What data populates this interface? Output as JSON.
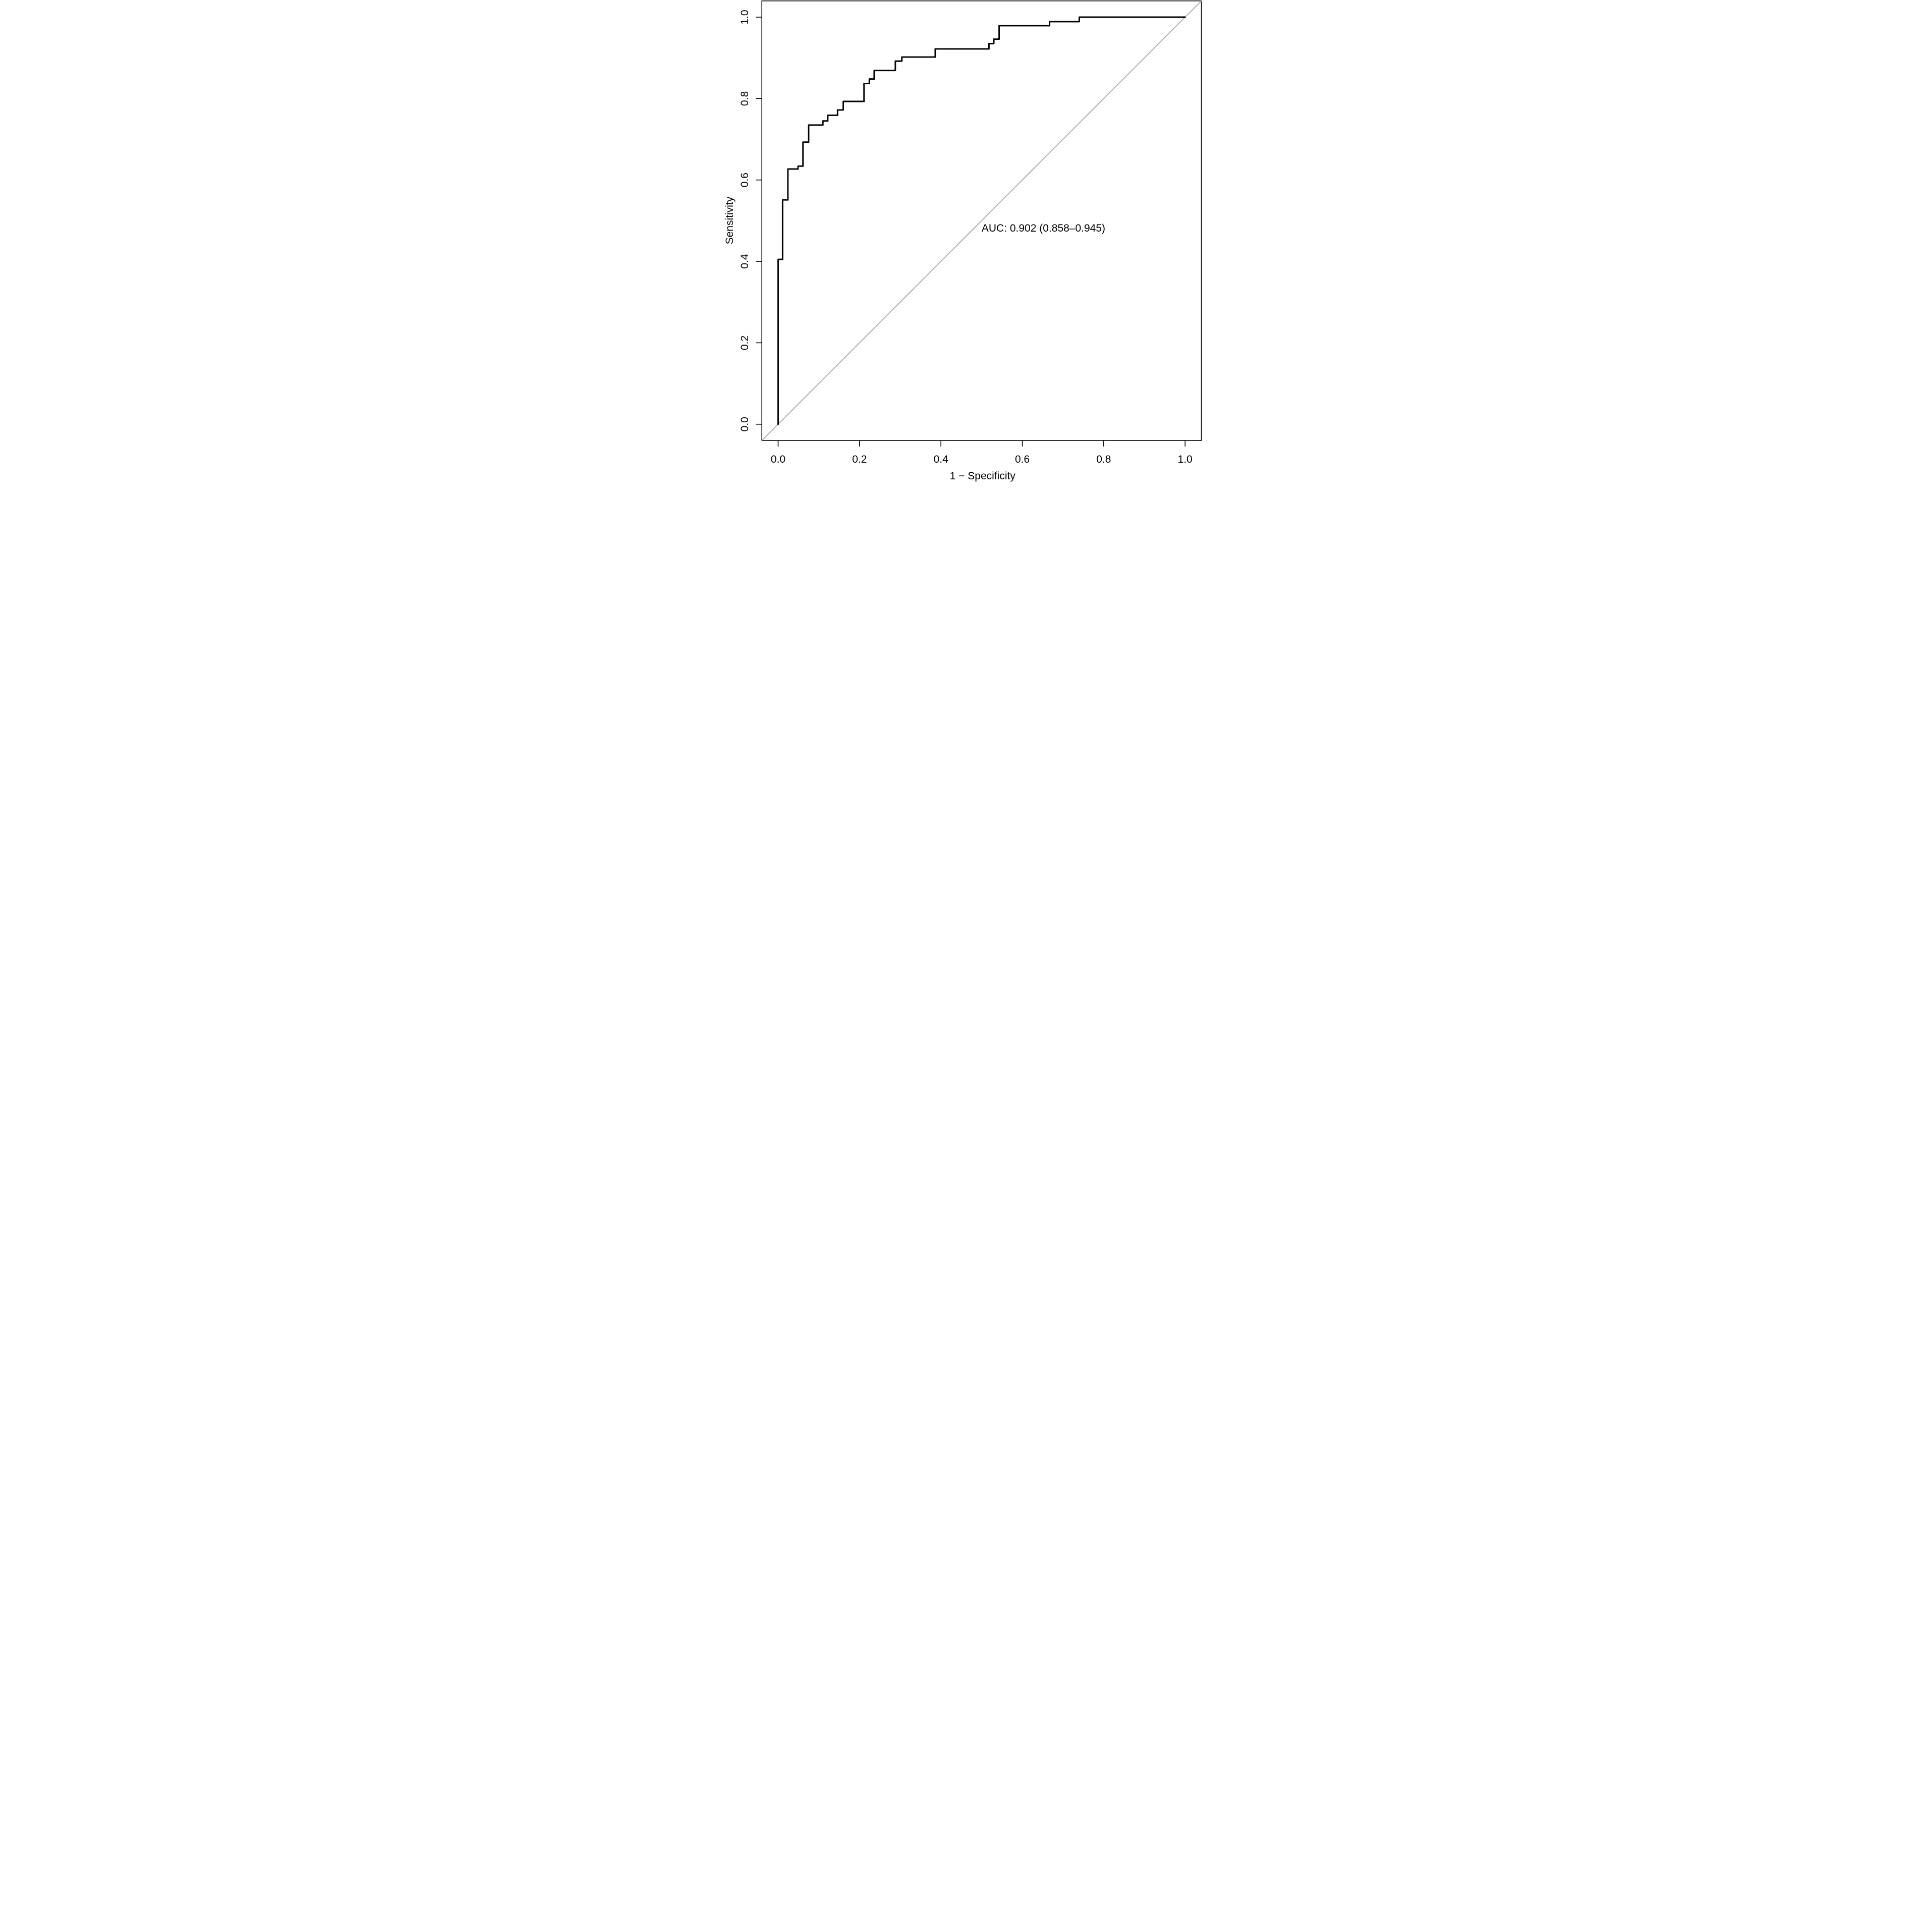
{
  "chart_data": {
    "type": "line",
    "subtype": "roc-step-curve",
    "title": "",
    "xlabel": "1 − Specificity",
    "ylabel": "Sensitivity",
    "xlim": [
      -0.04,
      1.04
    ],
    "ylim": [
      -0.04,
      1.04
    ],
    "x_ticks": [
      0.0,
      0.2,
      0.4,
      0.6,
      0.8,
      1.0
    ],
    "x_tick_labels": [
      "0.0",
      "0.2",
      "0.4",
      "0.6",
      "0.8",
      "1.0"
    ],
    "y_ticks": [
      0.0,
      0.2,
      0.4,
      0.6,
      0.8,
      1.0
    ],
    "y_tick_labels": [
      "0.0",
      "0.2",
      "0.4",
      "0.6",
      "0.8",
      "1.0"
    ],
    "grid": false,
    "legend_position": "none",
    "annotation_text": "AUC: 0.902 (0.858–0.945)",
    "annotation_anchor_xy": [
      0.5,
      0.482
    ],
    "auc": 0.902,
    "auc_ci_lower": 0.858,
    "auc_ci_upper": 0.945,
    "series": [
      {
        "name": "ROC curve",
        "color": "#000000",
        "line_width": 2.9,
        "step_points": [
          [
            0.0,
            0.0
          ],
          [
            0.0,
            0.405
          ],
          [
            0.011,
            0.405
          ],
          [
            0.011,
            0.551
          ],
          [
            0.024,
            0.551
          ],
          [
            0.024,
            0.627
          ],
          [
            0.049,
            0.627
          ],
          [
            0.049,
            0.634
          ],
          [
            0.061,
            0.634
          ],
          [
            0.061,
            0.693
          ],
          [
            0.075,
            0.693
          ],
          [
            0.075,
            0.735
          ],
          [
            0.11,
            0.735
          ],
          [
            0.11,
            0.745
          ],
          [
            0.122,
            0.745
          ],
          [
            0.122,
            0.759
          ],
          [
            0.146,
            0.759
          ],
          [
            0.146,
            0.772
          ],
          [
            0.16,
            0.772
          ],
          [
            0.16,
            0.793
          ],
          [
            0.211,
            0.793
          ],
          [
            0.211,
            0.837
          ],
          [
            0.224,
            0.837
          ],
          [
            0.224,
            0.848
          ],
          [
            0.236,
            0.848
          ],
          [
            0.236,
            0.869
          ],
          [
            0.288,
            0.869
          ],
          [
            0.288,
            0.892
          ],
          [
            0.304,
            0.892
          ],
          [
            0.304,
            0.902
          ],
          [
            0.386,
            0.902
          ],
          [
            0.386,
            0.922
          ],
          [
            0.518,
            0.922
          ],
          [
            0.518,
            0.935
          ],
          [
            0.53,
            0.935
          ],
          [
            0.53,
            0.946
          ],
          [
            0.543,
            0.946
          ],
          [
            0.543,
            0.979
          ],
          [
            0.667,
            0.979
          ],
          [
            0.667,
            0.989
          ],
          [
            0.74,
            0.989
          ],
          [
            0.74,
            1.0
          ],
          [
            1.0,
            1.0
          ]
        ]
      },
      {
        "name": "chance diagonal",
        "color": "#a6a6a6",
        "line_width": 1.7,
        "points": [
          [
            -0.04,
            -0.04
          ],
          [
            1.04,
            1.04
          ]
        ]
      }
    ],
    "colors": {
      "curve": "#000000",
      "reference_line": "#a6a6a6",
      "axis": "#000000",
      "text": "#000000",
      "background": "#ffffff"
    }
  }
}
